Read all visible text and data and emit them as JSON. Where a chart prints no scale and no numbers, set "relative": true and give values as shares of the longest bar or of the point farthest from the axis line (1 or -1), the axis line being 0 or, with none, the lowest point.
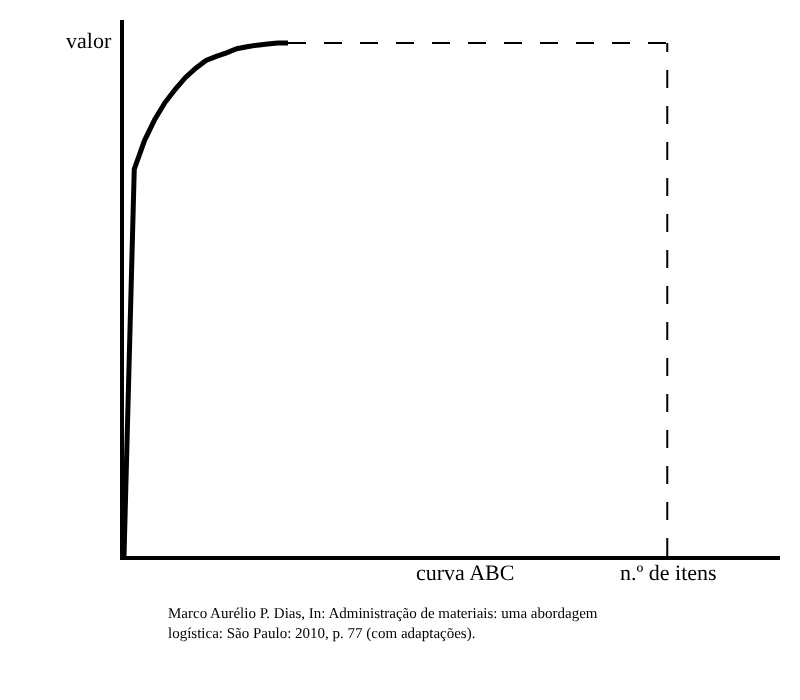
{
  "chart_data": {
    "type": "line",
    "relative": true,
    "xlabel": "curva ABC",
    "ylabel": "valor",
    "tick_labels": false,
    "marker": "none",
    "categories": [
      null,
      null,
      null,
      null,
      null,
      null,
      null,
      null,
      null,
      null,
      null,
      null,
      null,
      null,
      null,
      null,
      null,
      null,
      null,
      null,
      null,
      null,
      null,
      null,
      null,
      null,
      null,
      null,
      null,
      null,
      null,
      null,
      null,
      null,
      null,
      null,
      null,
      null,
      null,
      null,
      null,
      null,
      null,
      null,
      null,
      null,
      null,
      null,
      null,
      null,
      null,
      null,
      null,
      null,
      null,
      null,
      null,
      null,
      null,
      null,
      null,
      null,
      null,
      null,
      null
    ],
    "series": [
      {
        "color": "#000000",
        "line_style": "solid",
        "values": [
          0,
          0.754,
          0.81,
          0.851,
          0.884,
          0.91,
          0.933,
          0.951,
          0.966,
          0.974,
          0.981,
          0.989,
          0.993,
          0.996,
          0.998,
          1,
          1,
          null,
          null,
          null,
          null,
          null,
          null,
          null,
          null,
          null,
          null,
          null,
          null,
          null,
          null,
          null,
          null,
          null,
          null,
          null,
          null,
          null,
          null,
          null,
          null,
          null,
          null,
          null,
          null,
          null,
          null,
          null,
          null,
          null,
          null,
          null,
          null,
          null,
          null,
          null,
          null,
          null,
          null,
          null,
          null,
          null,
          null,
          null,
          null
        ]
      },
      {
        "color": "#000000",
        "line_style": "dashed",
        "values": [
          null,
          null,
          null,
          null,
          null,
          null,
          null,
          null,
          null,
          null,
          null,
          null,
          null,
          null,
          null,
          null,
          1,
          1,
          1,
          1,
          1,
          1,
          1,
          1,
          1,
          1,
          1,
          1,
          1,
          1,
          1,
          1,
          1,
          1,
          1,
          1,
          1,
          1,
          1,
          1,
          1,
          1,
          1,
          1,
          1,
          1,
          1,
          1,
          1,
          1,
          1,
          1,
          1,
          1,
          null,
          null,
          null,
          null,
          null,
          null,
          null,
          null,
          null,
          null,
          null
        ]
      }
    ],
    "annotations": [
      "n.º de itens",
      "Marco Aurélio P. Dias, In: Administração de materiais: uma abordagem logística: São Paulo: 2010, p. 77 (com adaptações)."
    ]
  }
}
